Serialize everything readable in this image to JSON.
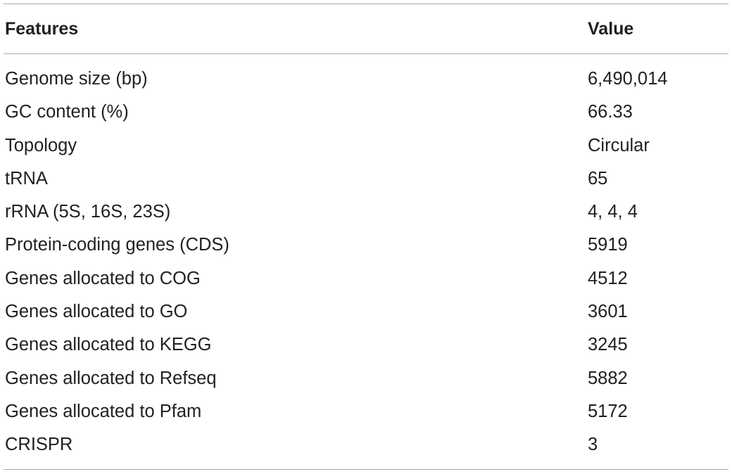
{
  "table": {
    "headers": {
      "feature": "Features",
      "value": "Value"
    },
    "rows": [
      {
        "feature": "Genome size (bp)",
        "value": "6,490,014"
      },
      {
        "feature": "GC content (%)",
        "value": "66.33"
      },
      {
        "feature": "Topology",
        "value": "Circular"
      },
      {
        "feature": "tRNA",
        "value": "65"
      },
      {
        "feature": "rRNA (5S, 16S, 23S)",
        "value": "4, 4, 4"
      },
      {
        "feature": "Protein-coding genes (CDS)",
        "value": "5919"
      },
      {
        "feature": "Genes allocated to COG",
        "value": "4512"
      },
      {
        "feature": "Genes allocated to GO",
        "value": "3601"
      },
      {
        "feature": "Genes allocated to KEGG",
        "value": "3245"
      },
      {
        "feature": "Genes allocated to Refseq",
        "value": "5882"
      },
      {
        "feature": "Genes allocated to Pfam",
        "value": "5172"
      },
      {
        "feature": "CRISPR",
        "value": "3"
      }
    ]
  }
}
